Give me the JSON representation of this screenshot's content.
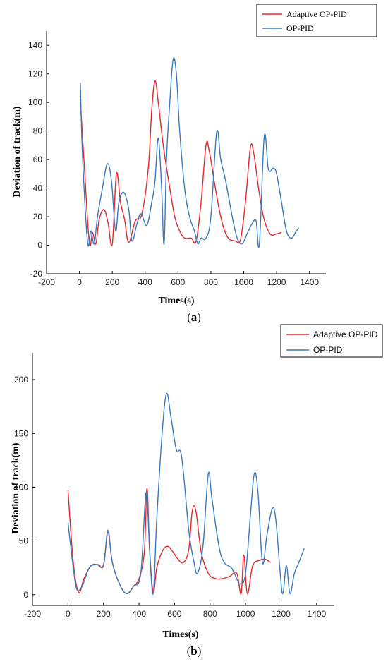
{
  "chart_data": [
    {
      "type": "line",
      "caption_open": "(",
      "caption_letter": "a",
      "caption_close": ")",
      "xlabel": "Times(s)",
      "ylabel": "Deviation of track(m)",
      "xlim": [
        -200,
        1500
      ],
      "ylim": [
        -20,
        150
      ],
      "xticks": [
        -200,
        0,
        200,
        400,
        600,
        800,
        1000,
        1200,
        1400
      ],
      "yticks": [
        -20,
        0,
        20,
        40,
        60,
        80,
        100,
        120,
        140
      ],
      "legend_position": "top-right",
      "series": [
        {
          "name": "Adaptive OP-PID",
          "color": "#e8262c",
          "points": [
            [
              5,
              102
            ],
            [
              30,
              55
            ],
            [
              60,
              2
            ],
            [
              80,
              9
            ],
            [
              100,
              1
            ],
            [
              120,
              18
            ],
            [
              150,
              25
            ],
            [
              175,
              15
            ],
            [
              200,
              1
            ],
            [
              225,
              50
            ],
            [
              250,
              30
            ],
            [
              275,
              18
            ],
            [
              300,
              2
            ],
            [
              340,
              17
            ],
            [
              380,
              22
            ],
            [
              420,
              55
            ],
            [
              440,
              95
            ],
            [
              460,
              115
            ],
            [
              480,
              100
            ],
            [
              510,
              70
            ],
            [
              550,
              40
            ],
            [
              580,
              20
            ],
            [
              610,
              10
            ],
            [
              640,
              5
            ],
            [
              680,
              5
            ],
            [
              710,
              3
            ],
            [
              740,
              30
            ],
            [
              770,
              70
            ],
            [
              790,
              66
            ],
            [
              820,
              45
            ],
            [
              860,
              20
            ],
            [
              900,
              6
            ],
            [
              950,
              3
            ],
            [
              980,
              4
            ],
            [
              1010,
              30
            ],
            [
              1040,
              68
            ],
            [
              1060,
              65
            ],
            [
              1090,
              40
            ],
            [
              1120,
              20
            ],
            [
              1160,
              8
            ],
            [
              1200,
              8
            ],
            [
              1230,
              9
            ]
          ]
        },
        {
          "name": "OP-PID",
          "color": "#3a7bbf",
          "points": [
            [
              5,
              114
            ],
            [
              20,
              60
            ],
            [
              50,
              2
            ],
            [
              70,
              10
            ],
            [
              90,
              1
            ],
            [
              110,
              20
            ],
            [
              140,
              40
            ],
            [
              170,
              57
            ],
            [
              195,
              45
            ],
            [
              220,
              10
            ],
            [
              240,
              30
            ],
            [
              270,
              37
            ],
            [
              300,
              25
            ],
            [
              320,
              3
            ],
            [
              350,
              15
            ],
            [
              375,
              22
            ],
            [
              410,
              14
            ],
            [
              440,
              30
            ],
            [
              460,
              45
            ],
            [
              480,
              75
            ],
            [
              500,
              40
            ],
            [
              515,
              1
            ],
            [
              530,
              60
            ],
            [
              550,
              100
            ],
            [
              570,
              130
            ],
            [
              590,
              120
            ],
            [
              610,
              80
            ],
            [
              640,
              40
            ],
            [
              670,
              20
            ],
            [
              700,
              10
            ],
            [
              720,
              1
            ],
            [
              740,
              5
            ],
            [
              770,
              5
            ],
            [
              800,
              20
            ],
            [
              835,
              79
            ],
            [
              860,
              60
            ],
            [
              890,
              45
            ],
            [
              930,
              20
            ],
            [
              960,
              5
            ],
            [
              990,
              1
            ],
            [
              1020,
              8
            ],
            [
              1050,
              15
            ],
            [
              1075,
              17
            ],
            [
              1095,
              1
            ],
            [
              1125,
              76
            ],
            [
              1150,
              53
            ],
            [
              1180,
              54
            ],
            [
              1200,
              50
            ],
            [
              1230,
              30
            ],
            [
              1260,
              10
            ],
            [
              1290,
              5
            ],
            [
              1320,
              10
            ],
            [
              1335,
              12
            ]
          ]
        }
      ]
    },
    {
      "type": "line",
      "caption_open": "(",
      "caption_letter": "b",
      "caption_close": ")",
      "xlabel": "Times(s)",
      "ylabel": "Deviation of track(m)",
      "xlim": [
        -200,
        1500
      ],
      "ylim": [
        -10,
        225
      ],
      "xticks": [
        -200,
        0,
        200,
        400,
        600,
        800,
        1000,
        1200,
        1400
      ],
      "yticks": [
        0,
        50,
        100,
        150,
        200
      ],
      "legend_position": "top-right",
      "series": [
        {
          "name": "Adaptive OP-PID",
          "color": "#e8262c",
          "points": [
            [
              0,
              97
            ],
            [
              30,
              30
            ],
            [
              60,
              2
            ],
            [
              90,
              15
            ],
            [
              130,
              27
            ],
            [
              170,
              28
            ],
            [
              200,
              27
            ],
            [
              225,
              58
            ],
            [
              250,
              30
            ],
            [
              290,
              10
            ],
            [
              330,
              1
            ],
            [
              370,
              8
            ],
            [
              400,
              15
            ],
            [
              430,
              40
            ],
            [
              445,
              99
            ],
            [
              460,
              40
            ],
            [
              480,
              2
            ],
            [
              500,
              25
            ],
            [
              530,
              40
            ],
            [
              560,
              45
            ],
            [
              590,
              40
            ],
            [
              620,
              33
            ],
            [
              650,
              30
            ],
            [
              680,
              42
            ],
            [
              700,
              78
            ],
            [
              720,
              78
            ],
            [
              750,
              40
            ],
            [
              790,
              20
            ],
            [
              830,
              15
            ],
            [
              870,
              15
            ],
            [
              910,
              17
            ],
            [
              950,
              20
            ],
            [
              975,
              1
            ],
            [
              990,
              37
            ],
            [
              1010,
              1
            ],
            [
              1040,
              27
            ],
            [
              1080,
              32
            ],
            [
              1110,
              33
            ],
            [
              1140,
              30
            ]
          ]
        },
        {
          "name": "OP-PID",
          "color": "#3a7bbf",
          "points": [
            [
              0,
              67
            ],
            [
              30,
              25
            ],
            [
              50,
              5
            ],
            [
              80,
              8
            ],
            [
              120,
              25
            ],
            [
              160,
              28
            ],
            [
              200,
              28
            ],
            [
              225,
              60
            ],
            [
              250,
              30
            ],
            [
              290,
              10
            ],
            [
              330,
              1
            ],
            [
              370,
              8
            ],
            [
              410,
              20
            ],
            [
              440,
              95
            ],
            [
              460,
              40
            ],
            [
              480,
              1
            ],
            [
              500,
              70
            ],
            [
              530,
              150
            ],
            [
              555,
              187
            ],
            [
              580,
              165
            ],
            [
              610,
              135
            ],
            [
              640,
              128
            ],
            [
              680,
              60
            ],
            [
              710,
              30
            ],
            [
              730,
              20
            ],
            [
              760,
              45
            ],
            [
              790,
              112
            ],
            [
              810,
              90
            ],
            [
              850,
              45
            ],
            [
              880,
              30
            ],
            [
              920,
              25
            ],
            [
              950,
              15
            ],
            [
              970,
              10
            ],
            [
              1000,
              20
            ],
            [
              1030,
              80
            ],
            [
              1050,
              113
            ],
            [
              1070,
              95
            ],
            [
              1095,
              30
            ],
            [
              1120,
              55
            ],
            [
              1150,
              80
            ],
            [
              1170,
              70
            ],
            [
              1195,
              20
            ],
            [
              1210,
              1
            ],
            [
              1230,
              27
            ],
            [
              1250,
              1
            ],
            [
              1275,
              20
            ],
            [
              1300,
              30
            ],
            [
              1330,
              43
            ]
          ]
        }
      ]
    }
  ]
}
